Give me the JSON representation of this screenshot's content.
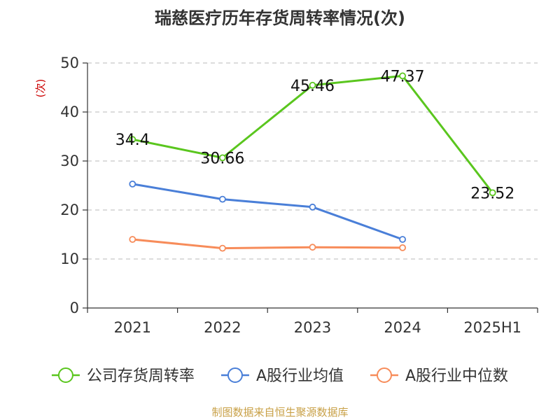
{
  "chart_data": {
    "type": "line",
    "title": "瑞慈医疗历年存货周转率情况(次)",
    "ylabel": "(次)",
    "ylabel_color": "#cc0000",
    "categories": [
      "2021",
      "2022",
      "2023",
      "2024",
      "2025H1"
    ],
    "ylim": [
      0,
      50
    ],
    "yticks": [
      0,
      10,
      20,
      30,
      40,
      50
    ],
    "grid": true,
    "legend_position": "bottom",
    "series": [
      {
        "name": "公司存货周转率",
        "color": "#5ac61e",
        "values": [
          34.4,
          30.66,
          45.46,
          47.37,
          23.52
        ],
        "labels": [
          "34.4",
          "30.66",
          "45.46",
          "47.37",
          "23.52"
        ]
      },
      {
        "name": "A股行业均值",
        "color": "#4a7fd8",
        "values": [
          25.3,
          22.2,
          20.6,
          14.0,
          null
        ]
      },
      {
        "name": "A股行业中位数",
        "color": "#f78c5a",
        "values": [
          14.0,
          12.2,
          12.4,
          12.3,
          null
        ]
      }
    ]
  },
  "source": "制图数据来自恒生聚源数据库"
}
